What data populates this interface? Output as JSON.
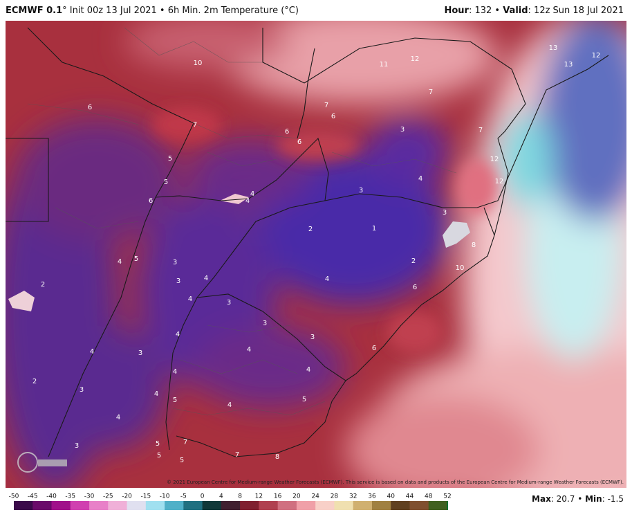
{
  "header": {
    "left": [
      "ECMWF 0.1",
      "° Init 00z 13 Jul 2021 • 6h Min. 2m Temperature (°C)"
    ],
    "right": [
      "Hour",
      ": 132 • ",
      "Valid",
      ": 12z Sun 18 Jul 2021"
    ]
  },
  "map_labels": [
    6,
    7,
    7,
    6,
    6,
    6,
    11,
    12,
    7,
    13,
    12,
    13,
    3,
    7,
    12,
    4,
    12,
    5,
    5,
    6,
    4,
    4,
    3,
    3,
    2,
    1,
    8,
    4,
    5,
    3,
    3,
    4,
    2,
    10,
    4,
    6,
    2,
    4,
    3,
    3,
    3,
    4,
    4,
    3,
    4,
    6,
    4,
    4,
    2,
    3,
    4,
    5,
    4,
    5,
    4,
    5,
    7,
    3,
    5,
    5,
    7,
    8,
    10
  ],
  "copyright": "© 2021 European Centre for Medium-range Weather Forecasts (ECMWF). This service is based on data and products of the European Centre for Medium-range Weather Forecasts (ECMWF).",
  "colorbar": {
    "ticks": [
      -50,
      -45,
      -40,
      -35,
      -30,
      -25,
      -20,
      -15,
      -10,
      -5,
      0,
      4,
      8,
      12,
      16,
      20,
      24,
      28,
      32,
      36,
      40,
      44,
      48,
      52
    ],
    "colors": [
      "#3a0a4a",
      "#6a0a6a",
      "#a0108a",
      "#d040b0",
      "#e880c8",
      "#f0b0d8",
      "#e0e0f0",
      "#a0e0f0",
      "#50b0c8",
      "#207080",
      "#103838",
      "#402030",
      "#802030",
      "#b04050",
      "#d07080",
      "#f0a0a8",
      "#f8d0c8",
      "#f0e0b0",
      "#d0b070",
      "#a08040",
      "#604020",
      "#805030",
      "#406020",
      "#107030"
    ]
  },
  "footer": [
    "Max",
    ": 20.7 • ",
    "Min",
    ": -1.5"
  ]
}
